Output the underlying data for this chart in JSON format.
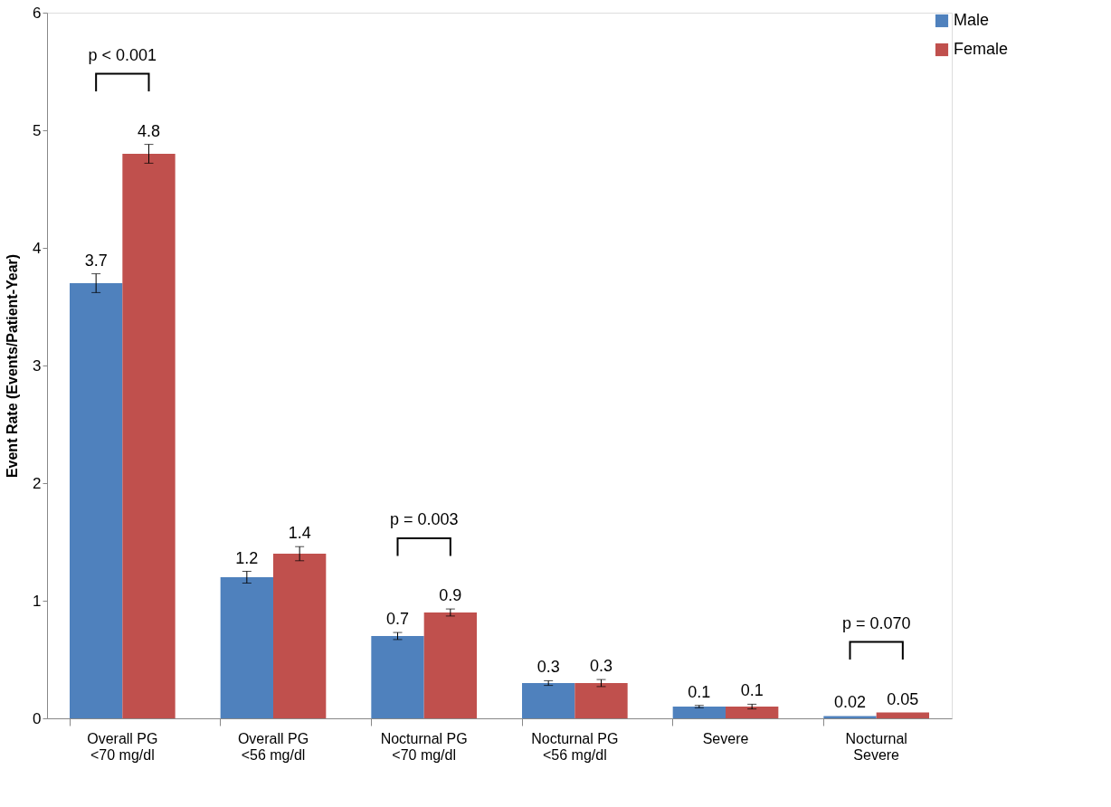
{
  "chart_data": {
    "type": "bar",
    "ylabel": "Event Rate (Events/Patient-Year)",
    "categories": [
      "Overall PG\n<70 mg/dl",
      "Overall PG\n<56 mg/dl",
      "Nocturnal PG\n<70 mg/dl",
      "Nocturnal PG\n<56 mg/dl",
      "Severe",
      "Nocturnal\nSevere"
    ],
    "series": [
      {
        "name": "Male",
        "color": "#4f81bd",
        "values": [
          3.7,
          1.2,
          0.7,
          0.3,
          0.1,
          0.02
        ],
        "errors": [
          0.08,
          0.05,
          0.03,
          0.02,
          0.01,
          null
        ]
      },
      {
        "name": "Female",
        "color": "#c0504d",
        "values": [
          4.8,
          1.4,
          0.9,
          0.3,
          0.1,
          0.05
        ],
        "errors": [
          0.08,
          0.06,
          0.03,
          0.03,
          0.02,
          null
        ]
      }
    ],
    "ylim": [
      0,
      6
    ],
    "yticks": [
      0,
      1,
      2,
      3,
      4,
      5,
      6
    ],
    "grid": false,
    "legend": "right",
    "data_labels": true,
    "annotations": [
      "p < 0.001",
      "p = 0.003",
      "p = 0.070"
    ]
  }
}
